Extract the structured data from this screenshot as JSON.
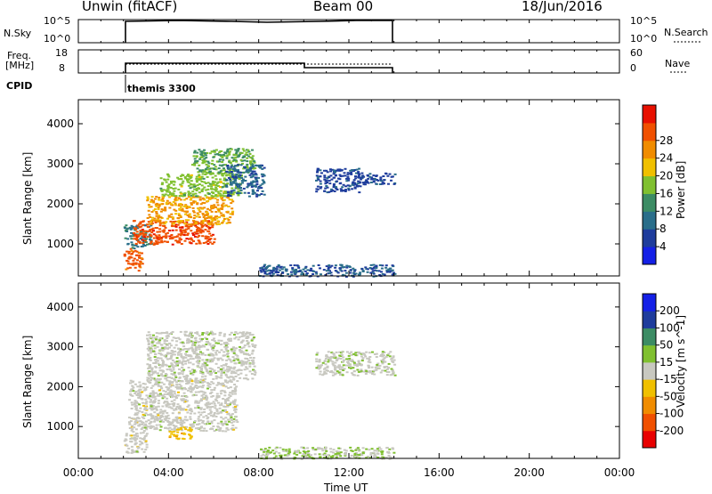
{
  "header": {
    "station_title": "Unwin (fitACF)",
    "beam": "Beam 00",
    "date": "18/Jun/2016"
  },
  "strips": {
    "nsky_label": "N.Sky",
    "nsky_ticks": [
      "10^5",
      "10^0"
    ],
    "nsearch_label": "N.Search",
    "freq_label": "Freq.",
    "freq_unit": "[MHz]",
    "freq_ticks": [
      "18",
      "8"
    ],
    "nave_label": "Nave",
    "nave_ticks": [
      "60",
      "0"
    ],
    "cpid_label": "CPID",
    "cpid_value": "themis 3300"
  },
  "x_axis": {
    "label": "Time UT",
    "ticks": [
      "00:00",
      "04:00",
      "08:00",
      "12:00",
      "16:00",
      "20:00",
      "00:00"
    ]
  },
  "colors": {
    "power": [
      "#1420e6",
      "#1e3c9c",
      "#2a6e8a",
      "#3c8c64",
      "#80c030",
      "#f0c000",
      "#f08c00",
      "#f05000",
      "#e81000"
    ],
    "velocity": [
      "#e80000",
      "#f05000",
      "#f08c00",
      "#f0c000",
      "#c8c8c0",
      "#80c030",
      "#3c8c64",
      "#1e3c9c",
      "#1420e6"
    ]
  },
  "chart_data": [
    {
      "type": "heatmap",
      "panel": "power",
      "ylabel": "Slant Range [km]",
      "y_ticks": [
        "1000",
        "2000",
        "3000",
        "4000"
      ],
      "y_tick_values": [
        1000,
        2000,
        3000,
        4000
      ],
      "ylim": [
        200,
        4600
      ],
      "xlim_hours": [
        0,
        24
      ],
      "colorbar_label": "Power [dB]",
      "colorbar_ticks": [
        "4",
        "8",
        "12",
        "16",
        "20",
        "24",
        "28"
      ],
      "colorbar_range": [
        0,
        32
      ],
      "regions": [
        {
          "t": [
            2.0,
            2.8
          ],
          "r": [
            350,
            900
          ],
          "v": 26
        },
        {
          "t": [
            2.0,
            3.2
          ],
          "r": [
            900,
            1500
          ],
          "v": 10
        },
        {
          "t": [
            2.4,
            6.0
          ],
          "r": [
            1000,
            1600
          ],
          "v": 27
        },
        {
          "t": [
            3.0,
            6.8
          ],
          "r": [
            1500,
            2200
          ],
          "v": 22
        },
        {
          "t": [
            3.6,
            7.2
          ],
          "r": [
            2200,
            2800
          ],
          "v": 16
        },
        {
          "t": [
            5.0,
            7.8
          ],
          "r": [
            2800,
            3400
          ],
          "v": 14
        },
        {
          "t": [
            6.5,
            8.2
          ],
          "r": [
            2200,
            3000
          ],
          "v": 8
        },
        {
          "t": [
            10.5,
            12.5
          ],
          "r": [
            2300,
            2900
          ],
          "v": 6
        },
        {
          "t": [
            12.5,
            14.0
          ],
          "r": [
            2500,
            2800
          ],
          "v": 6
        },
        {
          "t": [
            8.0,
            14.0
          ],
          "r": [
            200,
            500
          ],
          "v": 7
        }
      ]
    },
    {
      "type": "heatmap",
      "panel": "velocity",
      "ylabel": "Slant Range [km]",
      "y_ticks": [
        "1000",
        "2000",
        "3000",
        "4000"
      ],
      "y_tick_values": [
        1000,
        2000,
        3000,
        4000
      ],
      "ylim": [
        200,
        4600
      ],
      "xlim_hours": [
        0,
        24
      ],
      "colorbar_label": "Velocity [m s^-1]",
      "colorbar_ticks": [
        "-200",
        "-100",
        "-50",
        "-15",
        "15",
        "50",
        "100",
        "200"
      ],
      "colorbar_range": [
        -250,
        250
      ],
      "regions": [
        {
          "t": [
            2.0,
            3.0
          ],
          "r": [
            350,
            900
          ],
          "v": 0
        },
        {
          "t": [
            2.2,
            7.0
          ],
          "r": [
            900,
            2200
          ],
          "v": 0
        },
        {
          "t": [
            3.0,
            7.8
          ],
          "r": [
            2200,
            3400
          ],
          "v": 5
        },
        {
          "t": [
            4.0,
            5.0
          ],
          "r": [
            700,
            1000
          ],
          "v": -60
        },
        {
          "t": [
            10.5,
            14.0
          ],
          "r": [
            2300,
            2900
          ],
          "v": 10
        },
        {
          "t": [
            8.0,
            14.0
          ],
          "r": [
            200,
            500
          ],
          "v": 30
        }
      ]
    }
  ]
}
